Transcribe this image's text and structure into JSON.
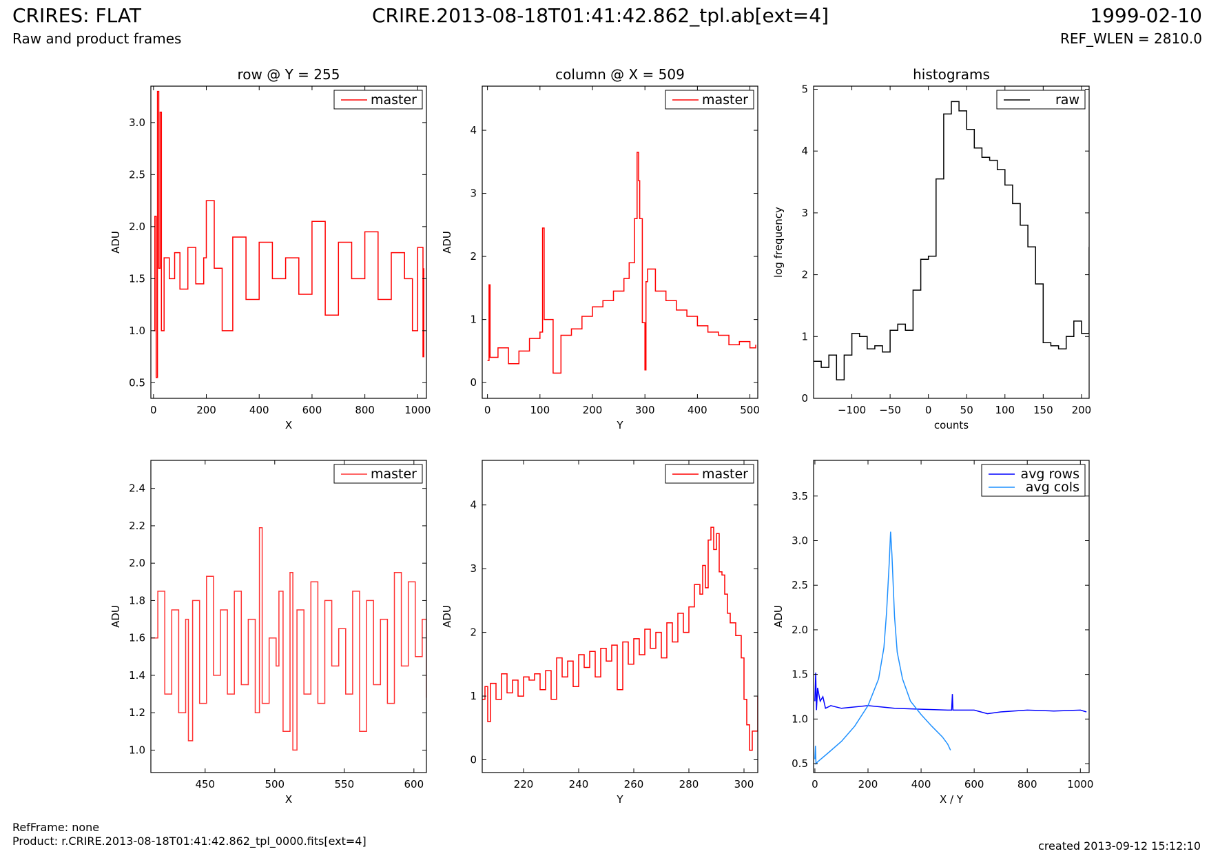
{
  "header": {
    "title_left": "CRIRES: FLAT",
    "title_center": "CRIRE.2013-08-18T01:41:42.862_tpl.ab[ext=4]",
    "title_right": "1999-02-10",
    "subtitle_left": "Raw and product frames",
    "subtitle_right": "REF_WLEN = 2810.0"
  },
  "footer": {
    "ref_frame": "RefFrame: none",
    "product": "Product: r.CRIRE.2013-08-18T01:41:42.862_tpl_0000.fits[ext=4]",
    "created": "created 2013-09-12 15:12:10"
  },
  "colors": {
    "red": "#ff0000",
    "light_red": "#ff3333",
    "blue": "#0000ff",
    "light_blue": "#1e90ff",
    "black": "#000000"
  },
  "chart_data": [
    {
      "type": "line",
      "title": "row @ Y = 255",
      "xlabel": "X",
      "ylabel": "ADU",
      "xlim": [
        -10,
        1033
      ],
      "ylim": [
        0.35,
        3.35
      ],
      "xticks": [
        0,
        200,
        400,
        600,
        800,
        1000
      ],
      "yticks": [
        0.5,
        1.0,
        1.5,
        2.0,
        2.5,
        3.0
      ],
      "ytick_format": 1,
      "legend": "top-right",
      "series": [
        {
          "name": "master",
          "color": "#ff0000",
          "style": "step",
          "x": [
            0,
            5,
            10,
            15,
            20,
            25,
            30,
            40,
            60,
            80,
            100,
            130,
            160,
            190,
            200,
            230,
            260,
            300,
            350,
            400,
            450,
            500,
            550,
            600,
            650,
            700,
            750,
            800,
            850,
            900,
            950,
            980,
            1000,
            1020,
            1023
          ],
          "y": [
            1.0,
            2.1,
            0.55,
            3.3,
            1.6,
            3.1,
            1.0,
            1.7,
            1.5,
            1.75,
            1.4,
            1.8,
            1.45,
            1.7,
            2.25,
            1.6,
            1.0,
            1.9,
            1.3,
            1.85,
            1.5,
            1.7,
            1.35,
            2.05,
            1.15,
            1.85,
            1.5,
            1.95,
            1.3,
            1.75,
            1.5,
            1.0,
            1.8,
            0.75,
            1.6
          ]
        }
      ]
    },
    {
      "type": "line",
      "title": "column @ X = 509",
      "xlabel": "Y",
      "ylabel": "ADU",
      "xlim": [
        -10,
        515
      ],
      "ylim": [
        -0.25,
        4.7
      ],
      "xticks": [
        0,
        100,
        200,
        300,
        400,
        500
      ],
      "yticks": [
        0,
        1,
        2,
        3,
        4
      ],
      "ytick_format": 0,
      "legend": "top-right",
      "series": [
        {
          "name": "master",
          "color": "#ff0000",
          "style": "step",
          "x": [
            0,
            3,
            5,
            20,
            40,
            60,
            80,
            100,
            105,
            108,
            120,
            125,
            140,
            160,
            180,
            200,
            220,
            240,
            260,
            270,
            280,
            285,
            288,
            290,
            295,
            300,
            302,
            305,
            320,
            340,
            360,
            380,
            400,
            420,
            440,
            460,
            480,
            500,
            511
          ],
          "y": [
            0.35,
            1.55,
            0.4,
            0.55,
            0.3,
            0.5,
            0.7,
            0.8,
            2.45,
            1.0,
            1.0,
            0.15,
            0.75,
            0.85,
            1.05,
            1.2,
            1.3,
            1.45,
            1.65,
            1.9,
            2.6,
            3.65,
            3.2,
            2.6,
            0.95,
            0.2,
            1.6,
            1.8,
            1.45,
            1.3,
            1.15,
            1.05,
            0.9,
            0.8,
            0.75,
            0.6,
            0.65,
            0.55,
            0.6
          ]
        }
      ]
    },
    {
      "type": "line",
      "title": "histograms",
      "xlabel": "counts",
      "ylabel": "log frequency",
      "xlim": [
        -150,
        210
      ],
      "ylim": [
        0,
        5.05
      ],
      "xticks": [
        -100,
        -50,
        0,
        50,
        100,
        150,
        200
      ],
      "yticks": [
        0,
        1,
        2,
        3,
        4,
        5
      ],
      "ytick_format": 0,
      "legend": "top-right",
      "series": [
        {
          "name": "raw",
          "color": "#000000",
          "style": "step",
          "x": [
            -150,
            -140,
            -130,
            -120,
            -110,
            -100,
            -90,
            -80,
            -70,
            -60,
            -50,
            -40,
            -30,
            -20,
            -10,
            0,
            10,
            20,
            30,
            40,
            50,
            60,
            70,
            80,
            90,
            100,
            110,
            120,
            130,
            140,
            150,
            160,
            170,
            180,
            190,
            200,
            210
          ],
          "y": [
            0.6,
            0.5,
            0.7,
            0.3,
            0.7,
            1.05,
            1.0,
            0.8,
            0.85,
            0.75,
            1.1,
            1.2,
            1.1,
            1.75,
            2.25,
            2.3,
            3.55,
            4.6,
            4.8,
            4.65,
            4.35,
            4.05,
            3.9,
            3.85,
            3.7,
            3.45,
            3.15,
            2.8,
            2.45,
            1.85,
            0.9,
            0.85,
            0.8,
            1.0,
            1.25,
            1.05,
            2.45
          ]
        }
      ]
    },
    {
      "type": "line",
      "title": "",
      "xlabel": "X",
      "ylabel": "ADU",
      "xlim": [
        411,
        609
      ],
      "ylim": [
        0.88,
        2.55
      ],
      "xticks": [
        450,
        500,
        550,
        600
      ],
      "yticks": [
        1.0,
        1.2,
        1.4,
        1.6,
        1.8,
        2.0,
        2.2,
        2.4
      ],
      "ytick_format": 1,
      "legend": "top-right",
      "series": [
        {
          "name": "master",
          "color": "#ff3333",
          "style": "step",
          "x": [
            411,
            416,
            421,
            426,
            431,
            436,
            438,
            441,
            446,
            451,
            456,
            461,
            466,
            471,
            476,
            481,
            486,
            489,
            491,
            496,
            501,
            503,
            506,
            511,
            513,
            516,
            521,
            526,
            531,
            536,
            541,
            546,
            551,
            556,
            561,
            566,
            571,
            576,
            581,
            586,
            591,
            596,
            601,
            606,
            609
          ],
          "y": [
            1.6,
            1.85,
            1.3,
            1.75,
            1.2,
            1.7,
            1.05,
            1.8,
            1.25,
            1.93,
            1.4,
            1.75,
            1.3,
            1.85,
            1.35,
            1.7,
            1.2,
            2.19,
            1.25,
            1.6,
            1.45,
            1.85,
            1.1,
            1.95,
            1.0,
            1.75,
            1.3,
            1.9,
            1.25,
            1.8,
            1.45,
            1.65,
            1.3,
            1.85,
            1.1,
            1.8,
            1.35,
            1.7,
            1.25,
            1.95,
            1.45,
            1.9,
            1.5,
            1.7,
            1.28
          ]
        }
      ]
    },
    {
      "type": "line",
      "title": "",
      "xlabel": "Y",
      "ylabel": "ADU",
      "xlim": [
        205,
        305
      ],
      "ylim": [
        -0.2,
        4.7
      ],
      "xticks": [
        220,
        240,
        260,
        280,
        300
      ],
      "yticks": [
        0,
        1,
        2,
        3,
        4
      ],
      "ytick_format": 0,
      "legend": "top-right",
      "series": [
        {
          "name": "master",
          "color": "#ff0000",
          "style": "step",
          "x": [
            205,
            206,
            207,
            208,
            210,
            212,
            214,
            216,
            218,
            220,
            222,
            224,
            226,
            228,
            230,
            232,
            234,
            236,
            238,
            240,
            242,
            244,
            246,
            248,
            250,
            252,
            254,
            256,
            258,
            260,
            262,
            264,
            266,
            268,
            270,
            272,
            274,
            276,
            278,
            280,
            282,
            284,
            285,
            286,
            287,
            288,
            289,
            290,
            291,
            292,
            293,
            294,
            295,
            297,
            299,
            300,
            301,
            302,
            303,
            305
          ],
          "y": [
            0.95,
            1.15,
            0.6,
            1.2,
            0.95,
            1.35,
            1.05,
            1.25,
            1.0,
            1.3,
            1.25,
            1.35,
            1.1,
            1.4,
            0.95,
            1.6,
            1.3,
            1.55,
            1.15,
            1.65,
            1.45,
            1.7,
            1.3,
            1.75,
            1.55,
            1.8,
            1.1,
            1.85,
            1.5,
            1.9,
            1.65,
            2.05,
            1.75,
            2.0,
            1.6,
            2.15,
            1.85,
            2.3,
            2.0,
            2.4,
            2.75,
            2.6,
            3.05,
            2.7,
            3.45,
            3.65,
            3.3,
            3.55,
            2.95,
            2.9,
            2.6,
            2.3,
            2.15,
            1.95,
            1.6,
            0.95,
            0.55,
            0.15,
            0.45,
            1.0
          ]
        }
      ]
    },
    {
      "type": "line",
      "title": "",
      "xlabel": "X / Y",
      "ylabel": "ADU",
      "xlim": [
        -5,
        1033
      ],
      "ylim": [
        0.4,
        3.9
      ],
      "xticks": [
        0,
        200,
        400,
        600,
        800,
        1000
      ],
      "yticks": [
        0.5,
        1.0,
        1.5,
        2.0,
        2.5,
        3.0,
        3.5
      ],
      "ytick_format": 1,
      "legend": "top-right",
      "series": [
        {
          "name": "avg rows",
          "color": "#0000ff",
          "style": "line",
          "x": [
            0,
            3,
            6,
            10,
            20,
            30,
            40,
            60,
            100,
            200,
            300,
            400,
            500,
            515,
            518,
            520,
            600,
            650,
            700,
            800,
            900,
            1000,
            1023
          ],
          "y": [
            1.2,
            1.52,
            1.1,
            1.35,
            1.2,
            1.25,
            1.12,
            1.15,
            1.12,
            1.15,
            1.12,
            1.11,
            1.1,
            1.1,
            1.28,
            1.1,
            1.1,
            1.06,
            1.08,
            1.1,
            1.09,
            1.1,
            1.08
          ]
        },
        {
          "name": "avg cols",
          "color": "#1e90ff",
          "style": "line",
          "x": [
            0,
            2,
            4,
            10,
            50,
            100,
            150,
            200,
            240,
            260,
            270,
            280,
            285,
            290,
            300,
            310,
            330,
            360,
            400,
            440,
            480,
            500,
            511
          ],
          "y": [
            0.55,
            0.7,
            0.5,
            0.52,
            0.62,
            0.75,
            0.92,
            1.15,
            1.45,
            1.8,
            2.2,
            2.75,
            3.1,
            2.85,
            2.15,
            1.75,
            1.45,
            1.2,
            1.05,
            0.92,
            0.8,
            0.72,
            0.65
          ]
        }
      ]
    }
  ]
}
